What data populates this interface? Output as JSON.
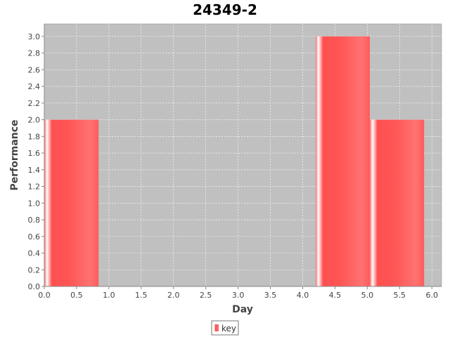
{
  "chart_data": {
    "type": "bar",
    "title": "24349-2",
    "xlabel": "Day",
    "ylabel": "Performance",
    "xlim": [
      0.0,
      6.15
    ],
    "ylim": [
      0.0,
      3.15
    ],
    "x_ticks": [
      "0.0",
      "0.5",
      "1.0",
      "1.5",
      "2.0",
      "2.5",
      "3.0",
      "3.5",
      "4.0",
      "4.5",
      "5.0",
      "5.5",
      "6.0"
    ],
    "y_ticks": [
      "0.0",
      "0.2",
      "0.4",
      "0.6",
      "0.8",
      "1.0",
      "1.2",
      "1.4",
      "1.6",
      "1.8",
      "2.0",
      "2.2",
      "2.4",
      "2.6",
      "2.8",
      "3.0"
    ],
    "grid": true,
    "legend_position": "bottom-center",
    "series": [
      {
        "name": "key",
        "color": "#ff5555",
        "bars": [
          {
            "x_start": 0.0,
            "x_end": 0.84,
            "value": 2.0
          },
          {
            "x_start": 4.2,
            "x_end": 5.04,
            "value": 3.0
          },
          {
            "x_start": 5.04,
            "x_end": 5.88,
            "value": 2.0
          }
        ]
      }
    ]
  }
}
